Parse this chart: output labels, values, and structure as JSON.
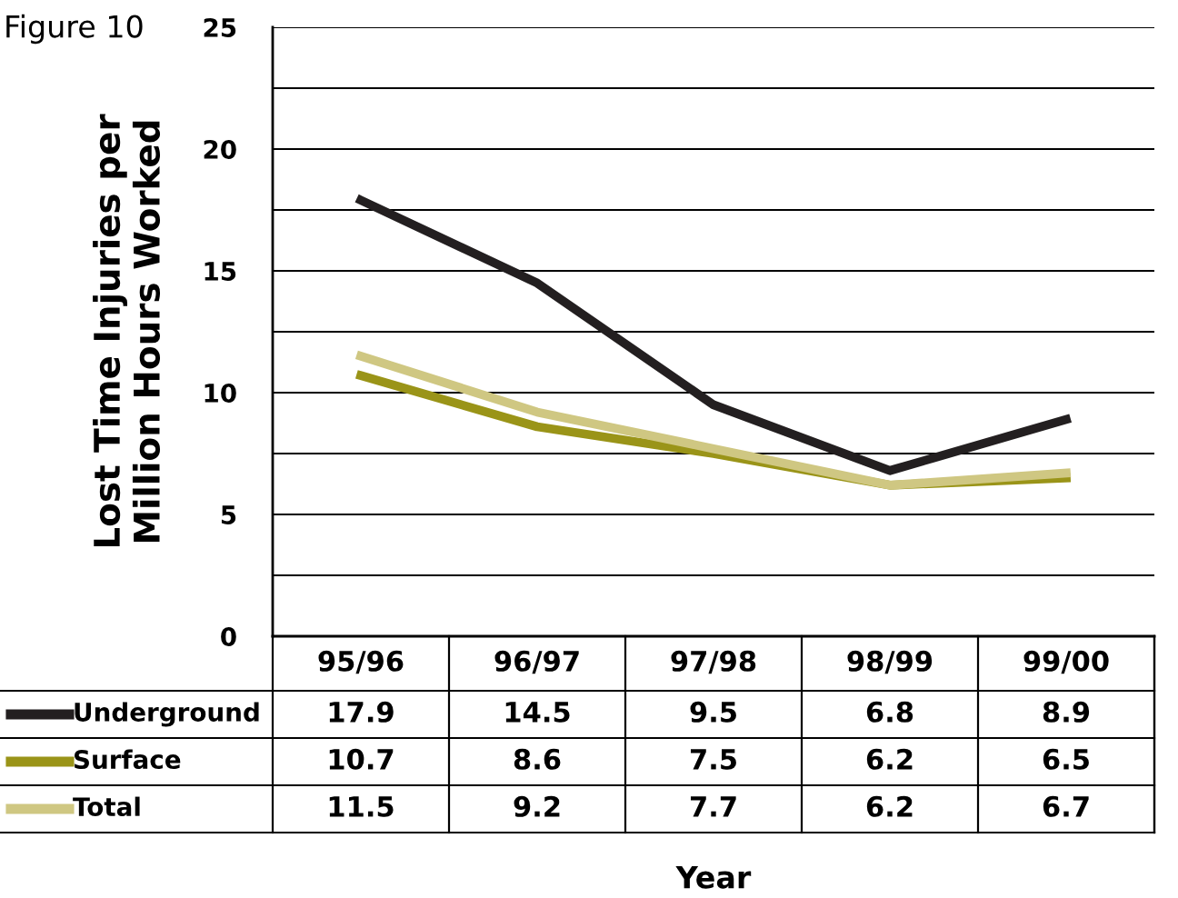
{
  "chart_data": {
    "type": "line",
    "title": "Figure 10",
    "annotations": [
      "Year"
    ],
    "ylabel": "Lost Time Injuries per\nMillion Hours Worked",
    "categories": [
      "95/96",
      "96/97",
      "97/98",
      "98/99",
      "99/00"
    ],
    "series": [
      {
        "name": "Underground",
        "color": "#231f20",
        "values": [
          17.9,
          14.5,
          9.5,
          6.8,
          8.9
        ]
      },
      {
        "name": "Surface",
        "color": "#9a9418",
        "values": [
          10.7,
          8.6,
          7.5,
          6.2,
          6.5
        ]
      },
      {
        "name": "Total",
        "color": "#cfc782",
        "values": [
          11.5,
          9.2,
          7.7,
          6.2,
          6.7
        ]
      }
    ],
    "ylim": [
      0,
      25
    ],
    "yticks": [
      0,
      {
        "value": 2.5,
        "label": null
      },
      5,
      {
        "value": 7.5,
        "label": null
      },
      10,
      {
        "value": 12.5,
        "label": null
      },
      15,
      {
        "value": 17.5,
        "label": null
      },
      20,
      {
        "value": 22.5,
        "label": null
      },
      25
    ],
    "grid": "y",
    "legend": "bottom",
    "data_labels": true,
    "marker": "none",
    "line_style": "solid"
  }
}
